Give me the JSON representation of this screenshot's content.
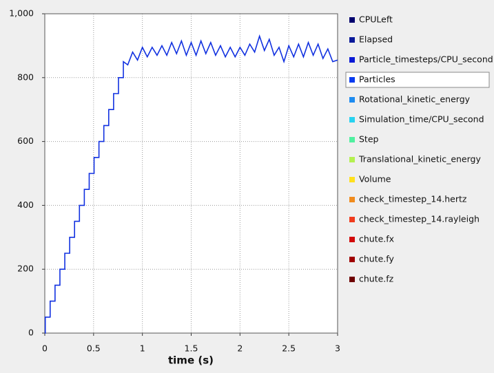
{
  "chart_data": {
    "type": "line",
    "xlabel": "time (s)",
    "x": [
      0,
      0.005,
      0.005,
      0.055,
      0.055,
      0.105,
      0.105,
      0.155,
      0.155,
      0.205,
      0.205,
      0.255,
      0.255,
      0.305,
      0.305,
      0.355,
      0.355,
      0.405,
      0.405,
      0.455,
      0.455,
      0.505,
      0.505,
      0.555,
      0.555,
      0.605,
      0.605,
      0.655,
      0.655,
      0.705,
      0.705,
      0.755,
      0.755,
      0.805,
      0.805,
      0.85,
      0.9,
      0.95,
      1.0,
      1.05,
      1.1,
      1.15,
      1.2,
      1.25,
      1.3,
      1.35,
      1.4,
      1.45,
      1.5,
      1.55,
      1.6,
      1.65,
      1.7,
      1.75,
      1.8,
      1.85,
      1.9,
      1.95,
      2.0,
      2.05,
      2.1,
      2.15,
      2.2,
      2.25,
      2.3,
      2.35,
      2.4,
      2.45,
      2.5,
      2.55,
      2.6,
      2.65,
      2.7,
      2.75,
      2.8,
      2.85,
      2.9,
      2.95,
      3.0
    ],
    "series": [
      {
        "color": "#1030e0",
        "values": [
          0,
          0,
          50,
          50,
          100,
          100,
          150,
          150,
          200,
          200,
          250,
          250,
          300,
          300,
          350,
          350,
          400,
          400,
          450,
          450,
          500,
          500,
          550,
          550,
          600,
          600,
          650,
          650,
          700,
          700,
          750,
          750,
          800,
          800,
          850,
          840,
          880,
          855,
          895,
          865,
          895,
          870,
          900,
          870,
          910,
          875,
          915,
          870,
          910,
          870,
          915,
          875,
          910,
          870,
          900,
          865,
          895,
          865,
          895,
          870,
          905,
          880,
          930,
          885,
          920,
          870,
          895,
          850,
          900,
          865,
          905,
          865,
          910,
          870,
          905,
          860,
          890,
          850,
          855
        ]
      }
    ],
    "xlim": [
      0,
      3
    ],
    "xticks": [
      0,
      0.5,
      1,
      1.5,
      2,
      2.5,
      3
    ],
    "ylim": [
      0,
      1000
    ],
    "yticks": [
      0,
      200,
      400,
      600,
      800,
      {
        "value": 1000,
        "label": "1,000"
      }
    ],
    "grid": true
  },
  "legend_list": {
    "selected": 3,
    "items": [
      {
        "name": "CPULeft",
        "color": "#00006e"
      },
      {
        "name": "Elapsed",
        "color": "#0a1a9a"
      },
      {
        "name": "Particle_timesteps/CPU_second",
        "color": "#0a1ad6"
      },
      {
        "name": "Particles",
        "color": "#0a3cf0"
      },
      {
        "name": "Rotational_kinetic_energy",
        "color": "#1e8cf0"
      },
      {
        "name": "Simulation_time/CPU_second",
        "color": "#28d2f0"
      },
      {
        "name": "Step",
        "color": "#50f0a0"
      },
      {
        "name": "Translational_kinetic_energy",
        "color": "#b4f050"
      },
      {
        "name": "Volume",
        "color": "#ffe01e"
      },
      {
        "name": "check_timestep_14.hertz",
        "color": "#f08c1e"
      },
      {
        "name": "check_timestep_14.rayleigh",
        "color": "#f03c1e"
      },
      {
        "name": "chute.fx",
        "color": "#d20a0a"
      },
      {
        "name": "chute.fy",
        "color": "#a00000"
      },
      {
        "name": "chute.fz",
        "color": "#6e0000"
      }
    ]
  }
}
